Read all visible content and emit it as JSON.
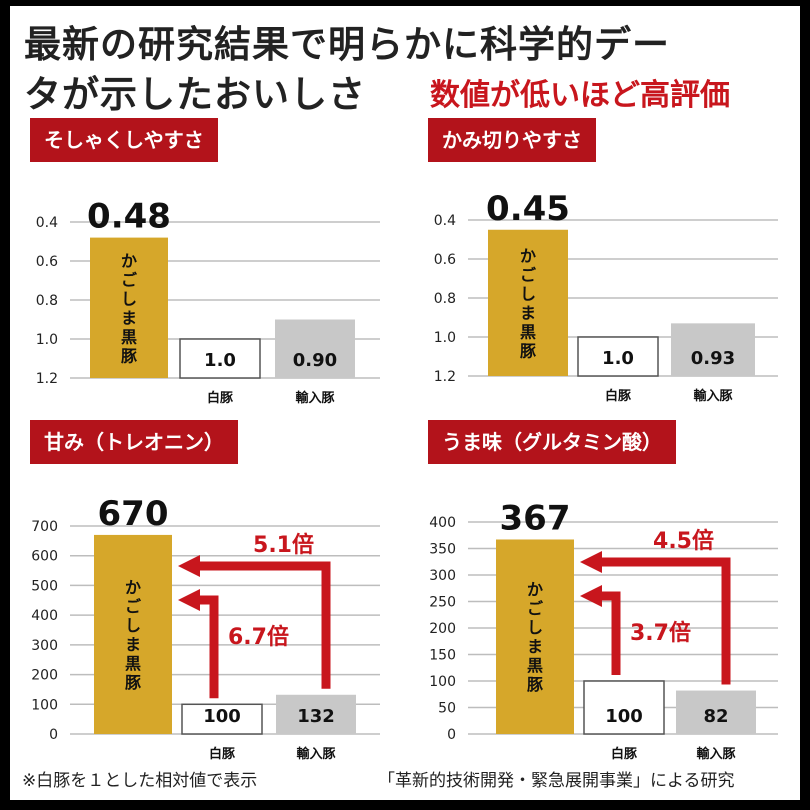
{
  "header": {
    "title_line1": "最新の研究結果で明らかに科学的デー",
    "title_line2": "タが示したおいしさ",
    "subtitle": "数値が低いほど高評価"
  },
  "footer": {
    "note_left": "※白豚を１とした相対値で表示",
    "note_right": "「革新的技術開発・緊急展開事業」による研究"
  },
  "colors": {
    "kagoshima": "#d6a72a",
    "white_pig": "#ffffff",
    "import_pig": "#c8c8c8",
    "accent": "#c8161d",
    "tag": "#b3131b"
  },
  "chart_data": [
    {
      "type": "bar",
      "label": "そしゃくしやすさ",
      "reversed_axis": true,
      "ylim": [
        0.4,
        1.2
      ],
      "ticks": [
        "0.4",
        "0.6",
        "0.8",
        "1.0",
        "1.2"
      ],
      "categories": [
        "かごしま黒豚",
        "白豚",
        "輸入豚"
      ],
      "values": [
        0.48,
        1.0,
        0.9
      ],
      "value_labels": [
        "0.48",
        "1.0",
        "0.90"
      ],
      "x_labels": [
        "",
        "白豚",
        "輸入豚"
      ]
    },
    {
      "type": "bar",
      "label": "かみ切りやすさ",
      "reversed_axis": true,
      "ylim": [
        0.4,
        1.2
      ],
      "ticks": [
        "0.4",
        "0.6",
        "0.8",
        "1.0",
        "1.2"
      ],
      "categories": [
        "かごしま黒豚",
        "白豚",
        "輸入豚"
      ],
      "values": [
        0.45,
        1.0,
        0.93
      ],
      "value_labels": [
        "0.45",
        "1.0",
        "0.93"
      ],
      "x_labels": [
        "",
        "白豚",
        "輸入豚"
      ]
    },
    {
      "type": "bar",
      "label": "甘み（トレオニン）",
      "reversed_axis": false,
      "ylim": [
        0,
        700
      ],
      "ticks": [
        "0",
        "100",
        "200",
        "300",
        "400",
        "500",
        "600",
        "700"
      ],
      "categories": [
        "かごしま黒豚",
        "白豚",
        "輸入豚"
      ],
      "values": [
        670,
        100,
        132
      ],
      "value_labels": [
        "670",
        "100",
        "132"
      ],
      "x_labels": [
        "",
        "白豚",
        "輸入豚"
      ],
      "annotations": {
        "from_import": "5.1倍",
        "from_white": "6.7倍"
      }
    },
    {
      "type": "bar",
      "label": "うま味（グルタミン酸）",
      "reversed_axis": false,
      "ylim": [
        0,
        400
      ],
      "ticks": [
        "0",
        "50",
        "100",
        "150",
        "200",
        "250",
        "300",
        "350",
        "400"
      ],
      "categories": [
        "かごしま黒豚",
        "白豚",
        "輸入豚"
      ],
      "values": [
        367,
        100,
        82
      ],
      "value_labels": [
        "367",
        "100",
        "82"
      ],
      "x_labels": [
        "",
        "白豚",
        "輸入豚"
      ],
      "annotations": {
        "from_import": "4.5倍",
        "from_white": "3.7倍"
      }
    }
  ]
}
